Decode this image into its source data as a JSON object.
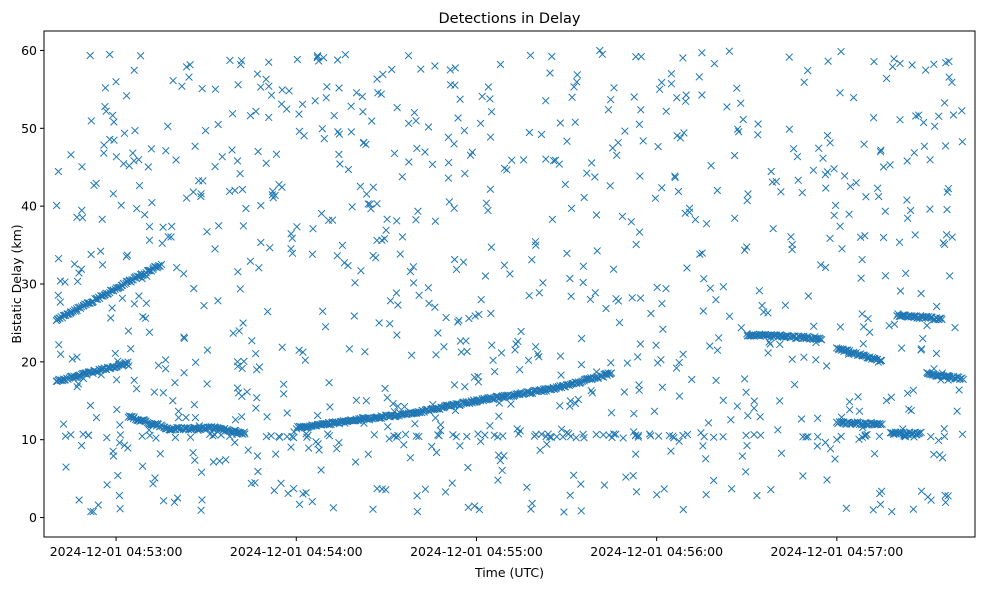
{
  "chart_data": {
    "type": "scatter",
    "title": "Detections in Delay",
    "xlabel": "Time (UTC)",
    "ylabel": "Bistatic Delay (km)",
    "x_ticks": [
      "2024-12-01 04:53:00",
      "2024-12-01 04:54:00",
      "2024-12-01 04:55:00",
      "2024-12-01 04:56:00",
      "2024-12-01 04:57:00"
    ],
    "y_ticks": [
      "0",
      "10",
      "20",
      "30",
      "40",
      "50",
      "60"
    ],
    "xlim": [
      "2024-12-01 04:52:36",
      "2024-12-01 04:57:46"
    ],
    "ylim": [
      -2.5,
      62.5
    ],
    "time_range": [
      "2024-12-01 04:52:40",
      "2024-12-01 04:57:42"
    ],
    "marker": "x",
    "color": "#1f77b4",
    "grid": false,
    "tracks": [
      {
        "points": [
          [
            "2024-12-01 04:52:40",
            17.5
          ],
          [
            "2024-12-01 04:53:04",
            19.8
          ]
        ]
      },
      {
        "points": [
          [
            "2024-12-01 04:52:40",
            25.3
          ],
          [
            "2024-12-01 04:53:15",
            32.5
          ]
        ]
      },
      {
        "points": [
          [
            "2024-12-01 04:53:04",
            13.0
          ],
          [
            "2024-12-01 04:53:18",
            11.4
          ],
          [
            "2024-12-01 04:53:33",
            11.5
          ],
          [
            "2024-12-01 04:53:43",
            10.8
          ]
        ]
      },
      {
        "points": [
          [
            "2024-12-01 04:54:00",
            11.5
          ],
          [
            "2024-12-01 04:54:40",
            13.5
          ],
          [
            "2024-12-01 04:55:00",
            15.0
          ],
          [
            "2024-12-01 04:55:25",
            16.5
          ],
          [
            "2024-12-01 04:55:45",
            18.5
          ]
        ]
      },
      {
        "points": [
          [
            "2024-12-01 04:56:30",
            23.5
          ],
          [
            "2024-12-01 04:56:55",
            23.0
          ]
        ]
      },
      {
        "points": [
          [
            "2024-12-01 04:57:00",
            21.8
          ],
          [
            "2024-12-01 04:57:15",
            20.0
          ]
        ]
      },
      {
        "points": [
          [
            "2024-12-01 04:57:00",
            12.2
          ],
          [
            "2024-12-01 04:57:15",
            12.0
          ]
        ]
      },
      {
        "points": [
          [
            "2024-12-01 04:57:20",
            26.0
          ],
          [
            "2024-12-01 04:57:35",
            25.5
          ]
        ]
      },
      {
        "points": [
          [
            "2024-12-01 04:57:30",
            18.5
          ],
          [
            "2024-12-01 04:57:42",
            17.8
          ]
        ]
      },
      {
        "points": [
          [
            "2024-12-01 04:57:18",
            10.8
          ],
          [
            "2024-12-01 04:57:28",
            10.8
          ]
        ]
      }
    ],
    "clutter": {
      "approx_count": 1000,
      "y_range": [
        0.5,
        60
      ]
    }
  }
}
